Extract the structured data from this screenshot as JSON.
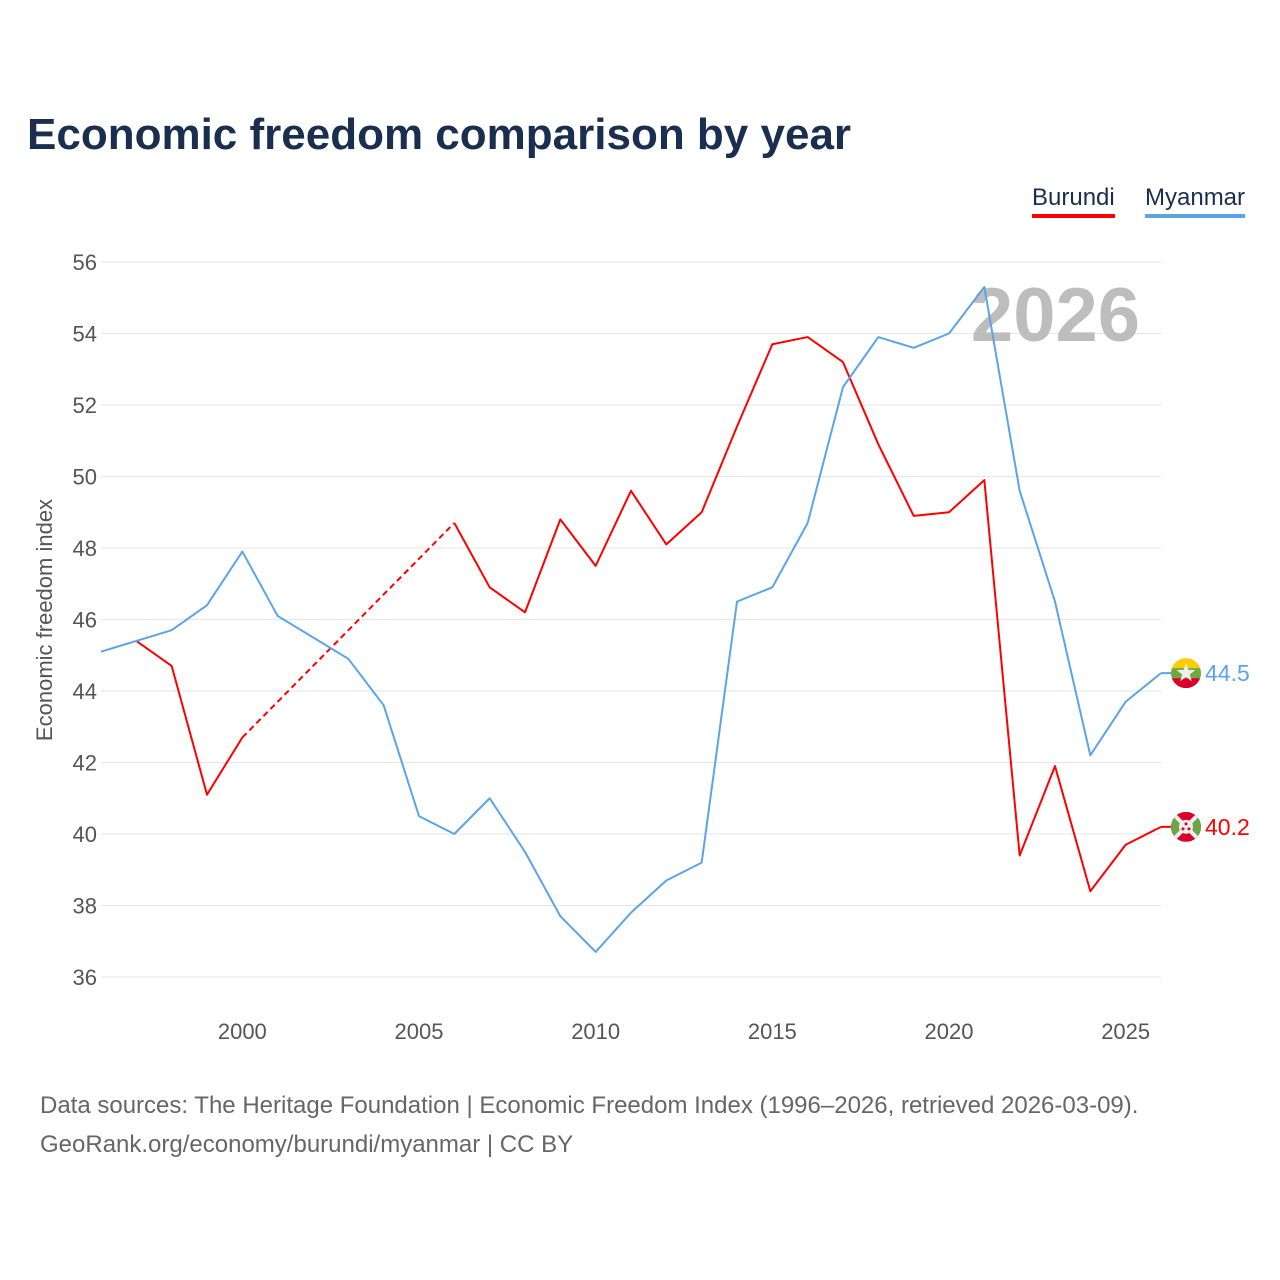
{
  "chart_data": {
    "type": "line",
    "title": "Economic freedom comparison by year",
    "xlabel": "",
    "ylabel": "Economic freedom index",
    "xlim": [
      1996,
      2026
    ],
    "ylim": [
      35.2,
      56.5
    ],
    "yticks": [
      36,
      38,
      40,
      42,
      44,
      46,
      48,
      50,
      52,
      54,
      56
    ],
    "xticks": [
      2000,
      2005,
      2010,
      2015,
      2020,
      2025
    ],
    "grid": true,
    "legend_position": "top-right",
    "year_label": "2026",
    "x": [
      1996,
      1997,
      1998,
      1999,
      2000,
      2001,
      2002,
      2003,
      2004,
      2005,
      2006,
      2007,
      2008,
      2009,
      2010,
      2011,
      2012,
      2013,
      2014,
      2015,
      2016,
      2017,
      2018,
      2019,
      2020,
      2021,
      2022,
      2023,
      2024,
      2025,
      2026
    ],
    "series": [
      {
        "name": "Burundi",
        "color": "#ff0000",
        "end_label": "40.2",
        "flag": "burundi-flag",
        "values": [
          null,
          45.4,
          44.7,
          41.1,
          42.7,
          null,
          null,
          null,
          null,
          null,
          48.7,
          46.9,
          46.2,
          48.8,
          47.5,
          49.6,
          48.1,
          49.0,
          51.4,
          53.7,
          53.9,
          53.2,
          50.9,
          48.9,
          49.0,
          49.9,
          39.4,
          41.9,
          38.4,
          39.7,
          40.2
        ]
      },
      {
        "name": "Myanmar",
        "color": "#5ba4e8",
        "end_label": "44.5",
        "flag": "myanmar-flag",
        "values": [
          45.1,
          45.4,
          45.7,
          46.4,
          47.9,
          46.1,
          45.5,
          44.9,
          43.6,
          40.5,
          40.0,
          41.0,
          39.5,
          37.7,
          36.7,
          37.8,
          38.7,
          39.2,
          46.5,
          46.9,
          48.7,
          52.5,
          53.9,
          53.6,
          54.0,
          55.3,
          49.6,
          46.5,
          42.2,
          43.7,
          44.5
        ]
      }
    ]
  },
  "source_line1": "Data sources: The Heritage Foundation | Economic Freedom Index (1996–2026, retrieved 2026-03-09).",
  "source_line2": "GeoRank.org/economy/burundi/myanmar | CC BY"
}
